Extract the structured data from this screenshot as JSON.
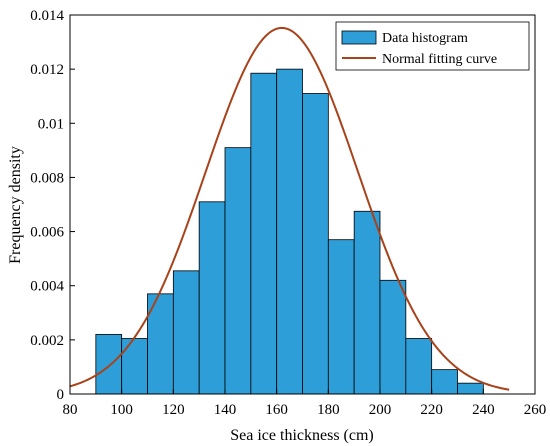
{
  "chart_data": {
    "type": "bar",
    "xlabel": "Sea ice thickness (cm)",
    "ylabel": "Frequency density",
    "xlim": [
      80,
      260
    ],
    "ylim": [
      0,
      0.014
    ],
    "xticks": [
      "80",
      "100",
      "120",
      "140",
      "160",
      "180",
      "200",
      "220",
      "240",
      "260"
    ],
    "yticks": [
      "0",
      "0.002",
      "0.004",
      "0.006",
      "0.008",
      "0.01",
      "0.012",
      "0.014"
    ],
    "grid": false,
    "legend_position": "top-right",
    "series": [
      {
        "name": "Data histogram",
        "kind": "histogram",
        "bin_edges": [
          90,
          100,
          110,
          120,
          130,
          140,
          150,
          160,
          170,
          180,
          190,
          200,
          210,
          220,
          230,
          240
        ],
        "values": [
          0.0022,
          0.00205,
          0.0037,
          0.00455,
          0.0071,
          0.0091,
          0.01185,
          0.012,
          0.0111,
          0.0057,
          0.00675,
          0.0042,
          0.00205,
          0.0009,
          0.0004
        ],
        "color": "#2e9ed8"
      },
      {
        "name": "Normal fitting curve",
        "kind": "line",
        "mean": 162,
        "std": 29.5,
        "x_range": [
          80,
          250
        ],
        "color": "#a8421a"
      }
    ]
  }
}
